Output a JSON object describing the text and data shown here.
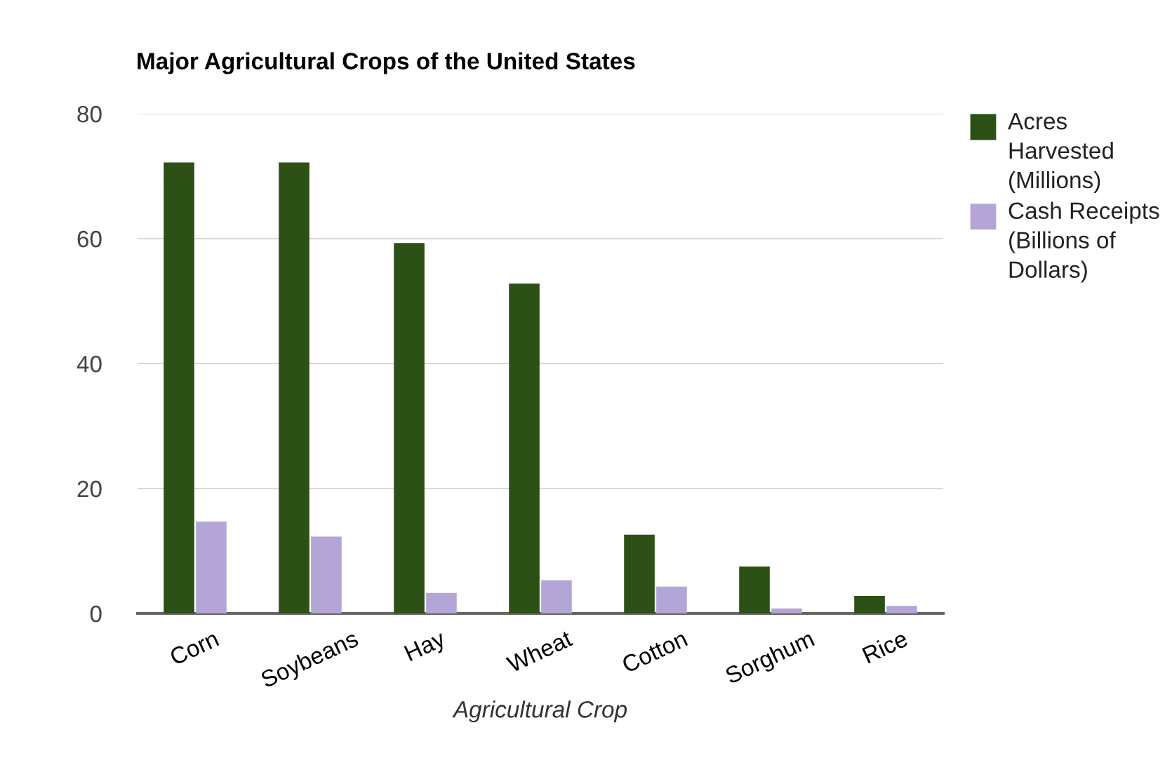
{
  "chart_data": {
    "type": "bar",
    "title": "Major Agricultural Crops of the United States",
    "xlabel": "Agricultural Crop",
    "categories": [
      "Corn",
      "Soybeans",
      "Hay",
      "Wheat",
      "Cotton",
      "Sorghum",
      "Rice"
    ],
    "series": [
      {
        "name": "Acres Harvested (Millions)",
        "color": "#2d5016",
        "values": [
          72.2,
          72.2,
          59.3,
          52.8,
          12.6,
          7.5,
          2.8
        ]
      },
      {
        "name": "Cash Receipts (Billions of Dollars)",
        "color": "#b3a6d6",
        "values": [
          14.7,
          12.3,
          3.3,
          5.3,
          4.3,
          0.8,
          1.2
        ]
      }
    ],
    "ylim": [
      0,
      80
    ],
    "yticks": [
      0,
      20,
      40,
      60,
      80
    ],
    "grid": "y",
    "legend": "right"
  }
}
